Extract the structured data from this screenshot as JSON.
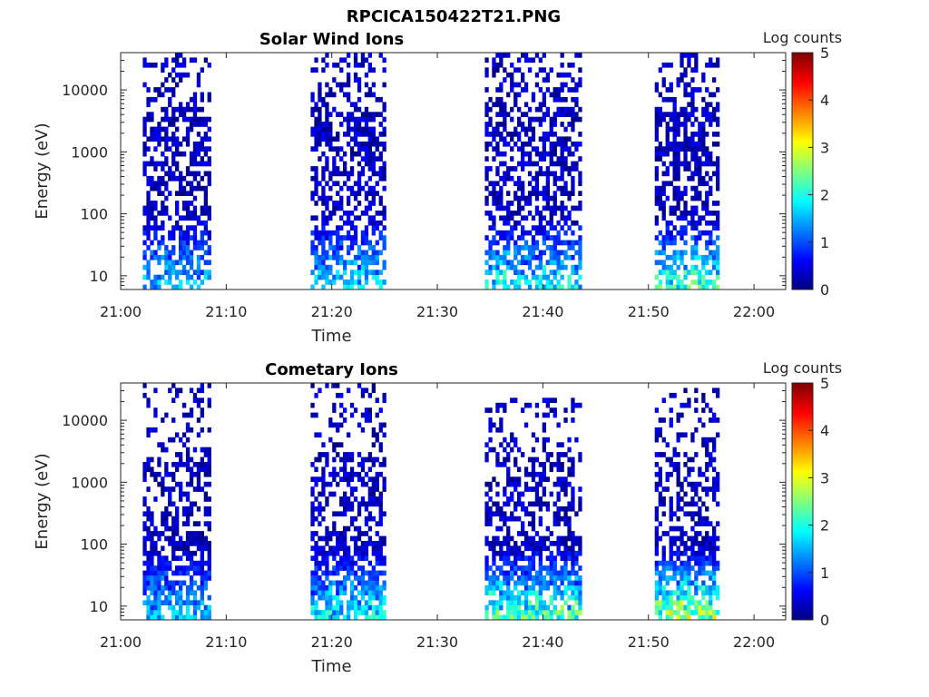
{
  "figure_title": "RPCICA150422T21.PNG",
  "chart_data": [
    {
      "type": "heatmap",
      "title": "Solar Wind Ions",
      "xlabel": "Time",
      "ylabel": "Energy (eV)",
      "colorbar_label": "Log counts",
      "x_ticks": [
        "21:00",
        "21:10",
        "21:20",
        "21:30",
        "21:40",
        "21:50",
        "22:00"
      ],
      "y_ticks": [
        "10",
        "100",
        "1000",
        "10000"
      ],
      "colorbar_ticks": [
        "0",
        "1",
        "2",
        "3",
        "4",
        "5"
      ],
      "y_scale": "log",
      "ylim": [
        6,
        40000
      ],
      "xlim_minutes": [
        0,
        63
      ],
      "clim": [
        0,
        5
      ],
      "colormap": "jet",
      "bursts": [
        {
          "t_start_min": 2.1,
          "t_end_min": 8.5,
          "e_min_ev": 6,
          "e_max_ev": 40000,
          "peak_log_counts": 1.8
        },
        {
          "t_start_min": 18.0,
          "t_end_min": 24.8,
          "e_min_ev": 6,
          "e_max_ev": 35000,
          "peak_log_counts": 2.0
        },
        {
          "t_start_min": 34.5,
          "t_end_min": 43.6,
          "e_min_ev": 6,
          "e_max_ev": 35000,
          "peak_log_counts": 2.2
        },
        {
          "t_start_min": 50.6,
          "t_end_min": 56.4,
          "e_min_ev": 6,
          "e_max_ev": 35000,
          "peak_log_counts": 2.6
        }
      ]
    },
    {
      "type": "heatmap",
      "title": "Cometary Ions",
      "xlabel": "Time",
      "ylabel": "Energy (eV)",
      "colorbar_label": "Log counts",
      "x_ticks": [
        "21:00",
        "21:10",
        "21:20",
        "21:30",
        "21:40",
        "21:50",
        "22:00"
      ],
      "y_ticks": [
        "10",
        "100",
        "1000",
        "10000"
      ],
      "colorbar_ticks": [
        "0",
        "1",
        "2",
        "3",
        "4",
        "5"
      ],
      "y_scale": "log",
      "ylim": [
        6,
        40000
      ],
      "xlim_minutes": [
        0,
        63
      ],
      "clim": [
        0,
        5
      ],
      "colormap": "jet",
      "bursts": [
        {
          "t_start_min": 2.1,
          "t_end_min": 8.5,
          "e_min_ev": 6,
          "e_max_ev": 35000,
          "peak_log_counts": 1.8
        },
        {
          "t_start_min": 18.0,
          "t_end_min": 24.8,
          "e_min_ev": 6,
          "e_max_ev": 35000,
          "peak_log_counts": 2.2
        },
        {
          "t_start_min": 34.5,
          "t_end_min": 43.6,
          "e_min_ev": 6,
          "e_max_ev": 20000,
          "peak_log_counts": 2.7
        },
        {
          "t_start_min": 50.6,
          "t_end_min": 56.4,
          "e_min_ev": 6,
          "e_max_ev": 30000,
          "peak_log_counts": 3.3
        }
      ]
    }
  ]
}
